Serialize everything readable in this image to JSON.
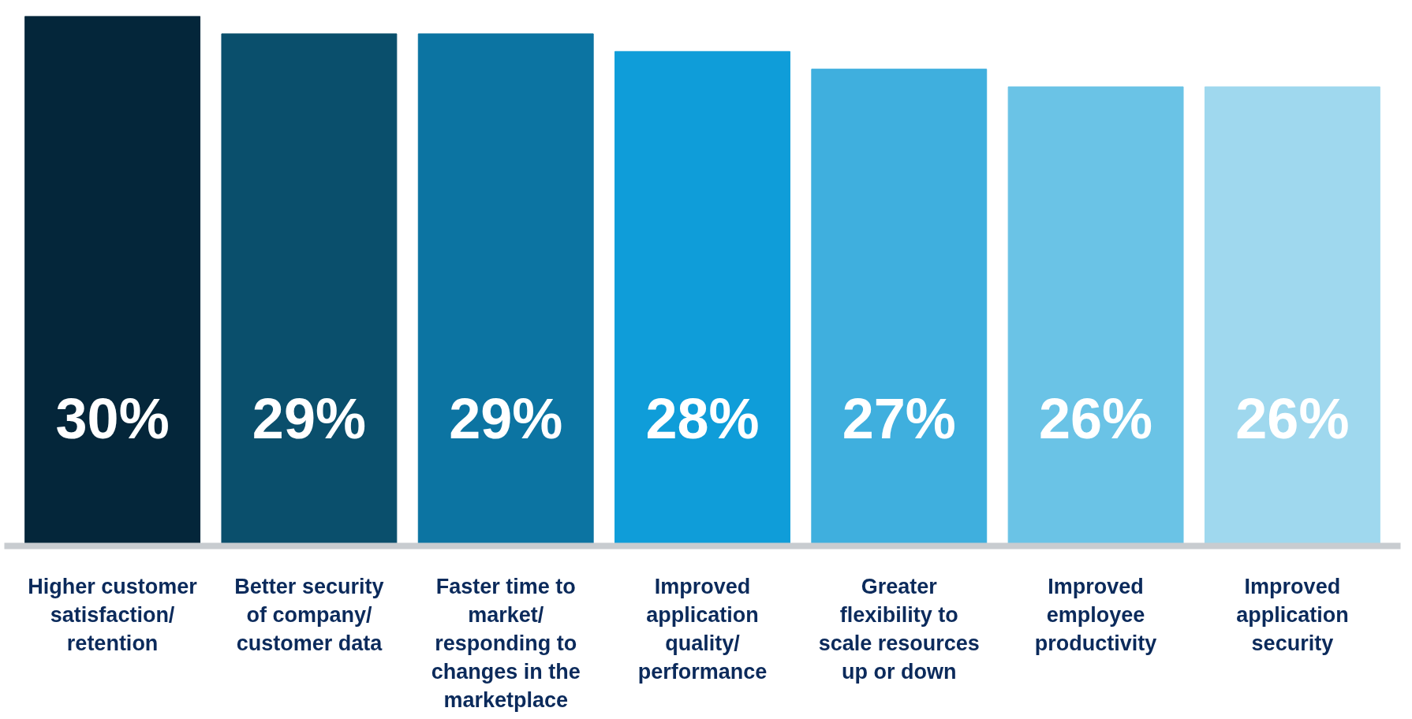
{
  "chart_data": {
    "type": "bar",
    "categories": [
      "Higher customer satisfaction/ retention",
      "Better security of company/ customer data",
      "Faster time to market/ responding to changes in the marketplace",
      "Improved application quality/ performance",
      "Greater flexibility to scale resources up or down",
      "Improved employee productivity",
      "Improved application security"
    ],
    "values": [
      30,
      29,
      29,
      28,
      27,
      26,
      26
    ],
    "colors": [
      "#04263a",
      "#0a4f6c",
      "#0c74a2",
      "#0f9dd9",
      "#3fafde",
      "#6ac3e6",
      "#9fd8ee"
    ],
    "value_labels": [
      "30%",
      "29%",
      "29%",
      "28%",
      "27%",
      "26%",
      "26%"
    ],
    "ylim": [
      0,
      30
    ],
    "tick_labels": "x",
    "grid": false
  }
}
